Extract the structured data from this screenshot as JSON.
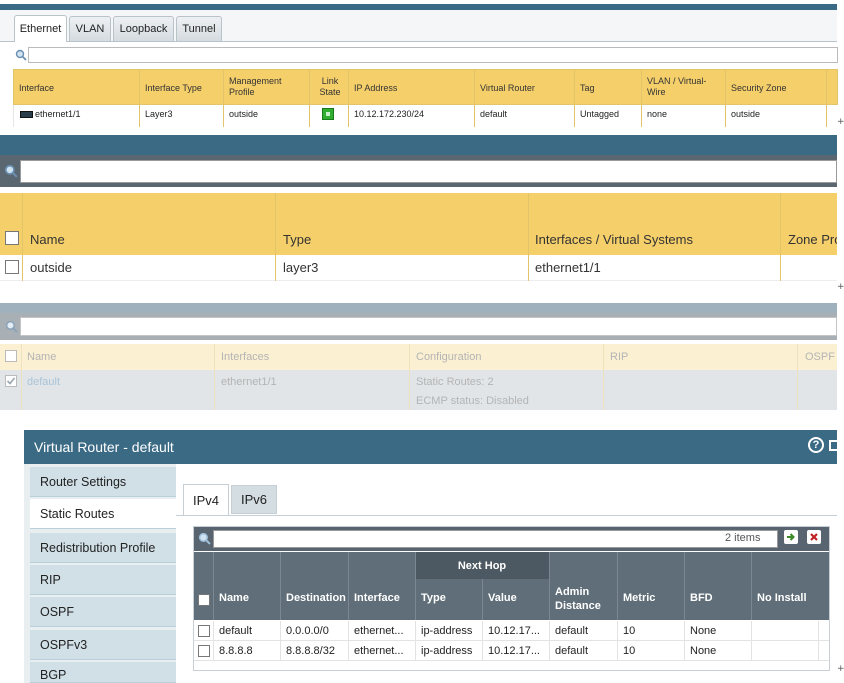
{
  "panel_interfaces": {
    "tabs": [
      "Ethernet",
      "VLAN",
      "Loopback",
      "Tunnel"
    ],
    "columns": [
      "Interface",
      "Interface Type",
      "Management Profile",
      "Link State",
      "IP Address",
      "Virtual Router",
      "Tag",
      "VLAN / Virtual-Wire",
      "Security Zone"
    ],
    "row": {
      "interface": "ethernet1/1",
      "type": "Layer3",
      "mgmt_profile": "outside",
      "ip": "10.12.172.230/24",
      "router": "default",
      "tag": "Untagged",
      "vlan": "none",
      "zone": "outside"
    },
    "link_state": "up"
  },
  "panel_zones": {
    "columns": [
      "Name",
      "Type",
      "Interfaces / Virtual Systems",
      "Zone Pro"
    ],
    "row": {
      "name": "outside",
      "type": "layer3",
      "interfaces": "ethernet1/1"
    }
  },
  "panel_routers": {
    "columns": [
      "Name",
      "Interfaces",
      "Configuration",
      "RIP",
      "OSPF"
    ],
    "row": {
      "name": "default",
      "interfaces": "ethernet1/1",
      "config_line1": "Static Routes: 2",
      "config_line2": "ECMP status: Disabled"
    }
  },
  "virtual_router": {
    "title": "Virtual Router - default",
    "sidebar": [
      "Router Settings",
      "Static Routes",
      "Redistribution Profile",
      "RIP",
      "OSPF",
      "OSPFv3",
      "BGP"
    ],
    "tabs": [
      "IPv4",
      "IPv6"
    ],
    "items_count": "2 items",
    "group_header": "Next Hop",
    "columns": [
      "Name",
      "Destination",
      "Interface",
      "Type",
      "Value",
      "Admin Distance",
      "Metric",
      "BFD",
      "No Install"
    ],
    "rows": [
      [
        "default",
        "0.0.0.0/0",
        "ethernet...",
        "ip-address",
        "10.12.17...",
        "default",
        "10",
        "None",
        ""
      ],
      [
        "8.8.8.8",
        "8.8.8.8/32",
        "ethernet...",
        "ip-address",
        "10.12.17...",
        "default",
        "10",
        "None",
        ""
      ]
    ]
  },
  "colors": {
    "header_bar": "#3b6a85",
    "yellow_header": "#f5cf6a",
    "link": "#1f6fa8"
  }
}
